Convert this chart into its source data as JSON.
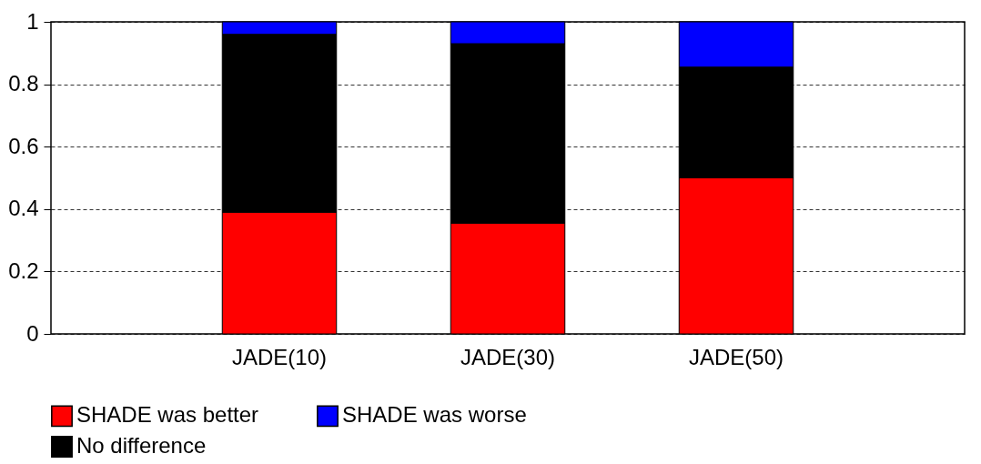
{
  "chart_data": {
    "type": "bar",
    "stacked": true,
    "categories": [
      "JADE(10)",
      "JADE(30)",
      "JADE(50)"
    ],
    "series": [
      {
        "name": "SHADE was better",
        "color": "#ff0000",
        "values": [
          0.39,
          0.355,
          0.5
        ]
      },
      {
        "name": "No difference",
        "color": "#000000",
        "values": [
          0.57,
          0.575,
          0.355
        ]
      },
      {
        "name": "SHADE was worse",
        "color": "#0000ff",
        "values": [
          0.04,
          0.07,
          0.145
        ]
      }
    ],
    "ylim": [
      0,
      1
    ],
    "yticks": [
      0,
      0.2,
      0.4,
      0.6,
      0.8,
      1
    ],
    "grid": "y",
    "legend": "bottom"
  }
}
